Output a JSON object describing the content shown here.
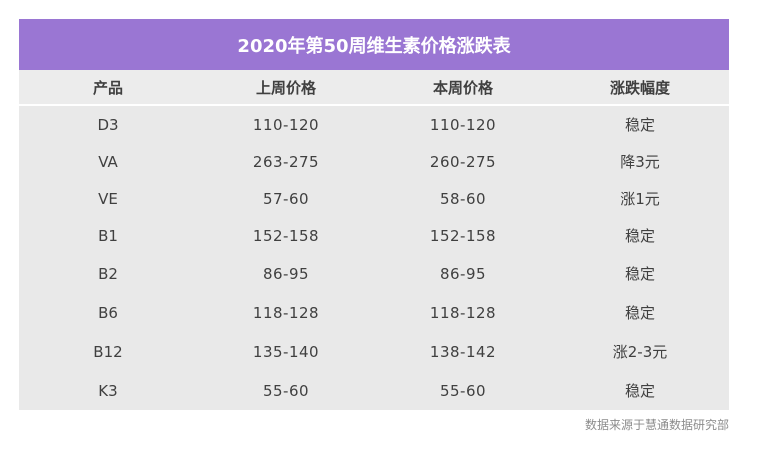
{
  "title": "2020年第50周维生素价格涨跌表",
  "headers": [
    "产品",
    "上周价格",
    "本周价格",
    "涨跌幅度"
  ],
  "rows": [
    [
      "D3",
      "110-120",
      "110-120",
      "稳定"
    ],
    [
      "VA",
      "263-275",
      "260-275",
      "降3元"
    ],
    [
      "VE",
      "57-60",
      "58-60",
      "涨1元"
    ],
    [
      "B1",
      "152-158",
      "152-158",
      "稳定"
    ],
    [
      "B2",
      "86-95",
      "86-95",
      "稳定"
    ],
    [
      "B6",
      "118-128",
      "118-128",
      "稳定"
    ],
    [
      "B12",
      "135-140",
      "138-142",
      "涨2-3元"
    ],
    [
      "K3",
      "55-60",
      "55-60",
      "稳定"
    ]
  ],
  "source": "数据来源于慧通数据研究部",
  "colors": {
    "title_bg": "#9a76d3",
    "table_bg": "#e9e9e9",
    "text": "#404040"
  }
}
